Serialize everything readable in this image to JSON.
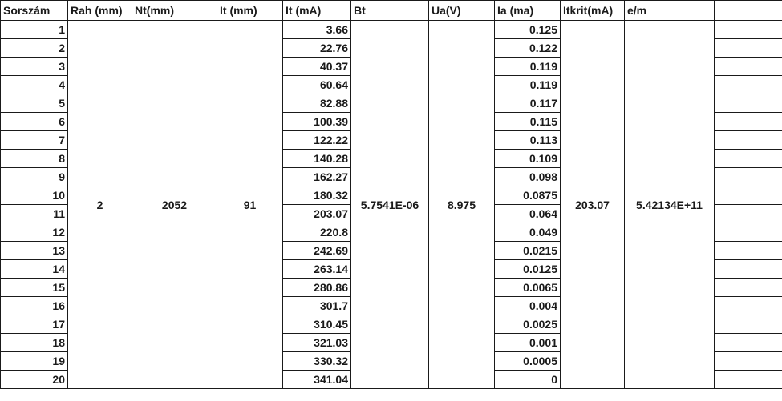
{
  "headers": [
    "Sorszám",
    "Rah (mm)",
    "Nt(mm)",
    "It (mm)",
    "It (mA)",
    "Bt",
    "Ua(V)",
    "Ia (ma)",
    "Itkrit(mA)",
    "e/m",
    ""
  ],
  "merged": {
    "rah": "2",
    "nt": "2052",
    "it_mm": "91",
    "bt": "5.7541E-06",
    "ua": "8.975",
    "itkrit": "203.07",
    "em": "5.42134E+11"
  },
  "rows": [
    {
      "n": "1",
      "it": "3.66",
      "ia": "0.125"
    },
    {
      "n": "2",
      "it": "22.76",
      "ia": "0.122"
    },
    {
      "n": "3",
      "it": "40.37",
      "ia": "0.119"
    },
    {
      "n": "4",
      "it": "60.64",
      "ia": "0.119"
    },
    {
      "n": "5",
      "it": "82.88",
      "ia": "0.117"
    },
    {
      "n": "6",
      "it": "100.39",
      "ia": "0.115"
    },
    {
      "n": "7",
      "it": "122.22",
      "ia": "0.113"
    },
    {
      "n": "8",
      "it": "140.28",
      "ia": "0.109"
    },
    {
      "n": "9",
      "it": "162.27",
      "ia": "0.098"
    },
    {
      "n": "10",
      "it": "180.32",
      "ia": "0.0875"
    },
    {
      "n": "11",
      "it": "203.07",
      "ia": "0.064"
    },
    {
      "n": "12",
      "it": "220.8",
      "ia": "0.049"
    },
    {
      "n": "13",
      "it": "242.69",
      "ia": "0.0215"
    },
    {
      "n": "14",
      "it": "263.14",
      "ia": "0.0125"
    },
    {
      "n": "15",
      "it": "280.86",
      "ia": "0.0065"
    },
    {
      "n": "16",
      "it": "301.7",
      "ia": "0.004"
    },
    {
      "n": "17",
      "it": "310.45",
      "ia": "0.0025"
    },
    {
      "n": "18",
      "it": "321.03",
      "ia": "0.001"
    },
    {
      "n": "19",
      "it": "330.32",
      "ia": "0.0005"
    },
    {
      "n": "20",
      "it": "341.04",
      "ia": "0"
    }
  ]
}
